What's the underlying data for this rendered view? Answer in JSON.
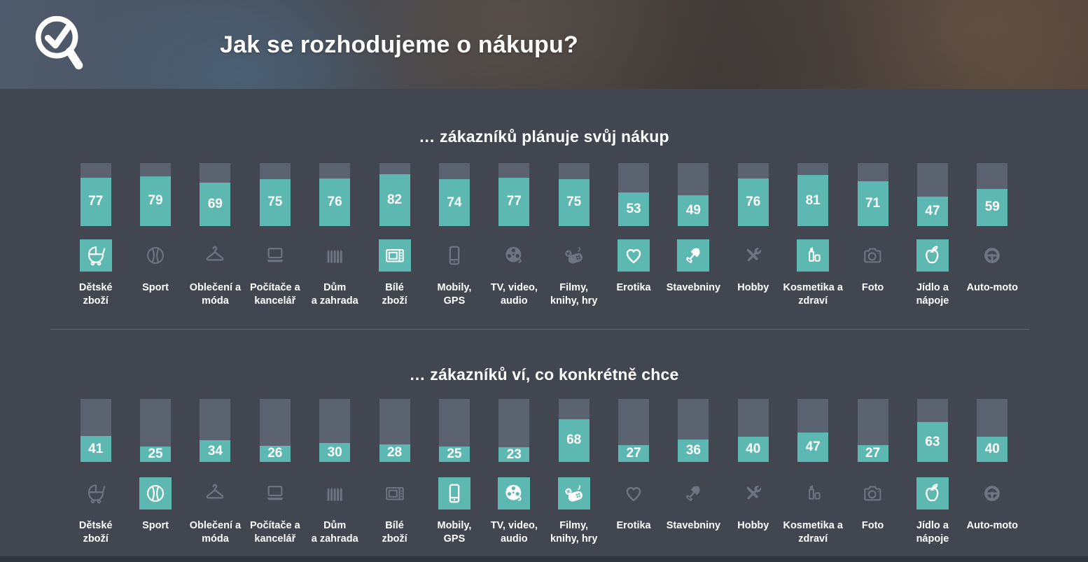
{
  "header": {
    "title": "Jak se rozhodujeme o nákupu?",
    "logo_icon": "magnifier-check-icon"
  },
  "colors": {
    "accent_teal": "#5cb8b1",
    "bar_track_gray": "#5c6370",
    "background": "#424651",
    "icon_gray": "#6d7583",
    "text_white": "#ffffff"
  },
  "categories": [
    {
      "icon": "stroller-icon",
      "lines": [
        "Dětské",
        "zboží"
      ]
    },
    {
      "icon": "basketball-icon",
      "lines": [
        "Sport"
      ]
    },
    {
      "icon": "hanger-icon",
      "lines": [
        "Oblečení a",
        "móda"
      ]
    },
    {
      "icon": "laptop-icon",
      "lines": [
        "Počítače a",
        "kancelář"
      ]
    },
    {
      "icon": "fence-icon",
      "lines": [
        "Dům",
        "a zahrada"
      ]
    },
    {
      "icon": "microwave-icon",
      "lines": [
        "Bílé",
        "zboží"
      ]
    },
    {
      "icon": "phone-icon",
      "lines": [
        "Mobily,",
        "GPS"
      ]
    },
    {
      "icon": "film-reel-icon",
      "lines": [
        "TV, video,",
        "audio"
      ]
    },
    {
      "icon": "gamepad-icon",
      "lines": [
        "Filmy,",
        "knihy, hry"
      ]
    },
    {
      "icon": "heart-icon",
      "lines": [
        "Erotika"
      ]
    },
    {
      "icon": "shovel-icon",
      "lines": [
        "Stavebniny"
      ]
    },
    {
      "icon": "tools-icon",
      "lines": [
        "Hobby"
      ]
    },
    {
      "icon": "lipstick-icon",
      "lines": [
        "Kosmetika a",
        "zdraví"
      ]
    },
    {
      "icon": "camera-icon",
      "lines": [
        "Foto"
      ]
    },
    {
      "icon": "apple-icon",
      "lines": [
        "Jídlo a",
        "nápoje"
      ]
    },
    {
      "icon": "steering-wheel-icon",
      "lines": [
        "Auto-moto"
      ]
    }
  ],
  "chart_data": [
    {
      "type": "bar",
      "title": "… zákazníků plánuje svůj nákup",
      "ylim": [
        0,
        100
      ],
      "categories": [
        "Dětské zboží",
        "Sport",
        "Oblečení a móda",
        "Počítače a kancelář",
        "Dům a zahrada",
        "Bílé zboží",
        "Mobily, GPS",
        "TV, video, audio",
        "Filmy, knihy, hry",
        "Erotika",
        "Stavebniny",
        "Hobby",
        "Kosmetika a zdraví",
        "Foto",
        "Jídlo a nápoje",
        "Auto-moto"
      ],
      "values": [
        77,
        79,
        69,
        75,
        76,
        82,
        74,
        77,
        75,
        53,
        49,
        76,
        81,
        71,
        47,
        59
      ],
      "highlighted": [
        true,
        false,
        false,
        false,
        false,
        true,
        false,
        false,
        false,
        true,
        true,
        false,
        true,
        false,
        true,
        false
      ],
      "highlighted_categories": [
        "Dětské zboží",
        "Bílé zboží",
        "Erotika",
        "Stavebniny",
        "Kosmetika a zdraví",
        "Jídlo a nápoje"
      ]
    },
    {
      "type": "bar",
      "title": "… zákazníků ví, co konkrétně chce",
      "ylim": [
        0,
        100
      ],
      "categories": [
        "Dětské zboží",
        "Sport",
        "Oblečení a móda",
        "Počítače a kancelář",
        "Dům a zahrada",
        "Bílé zboží",
        "Mobily, GPS",
        "TV, video, audio",
        "Filmy, knihy, hry",
        "Erotika",
        "Stavebniny",
        "Hobby",
        "Kosmetika a zdraví",
        "Foto",
        "Jídlo a nápoje",
        "Auto-moto"
      ],
      "values": [
        41,
        25,
        34,
        26,
        30,
        28,
        25,
        23,
        68,
        27,
        36,
        40,
        47,
        27,
        63,
        40
      ],
      "highlighted": [
        false,
        true,
        false,
        false,
        false,
        false,
        true,
        true,
        true,
        false,
        false,
        false,
        false,
        false,
        true,
        false
      ],
      "highlighted_categories": [
        "Sport",
        "Mobily, GPS",
        "TV, video, audio",
        "Filmy, knihy, hry",
        "Jídlo a nápoje"
      ]
    }
  ]
}
